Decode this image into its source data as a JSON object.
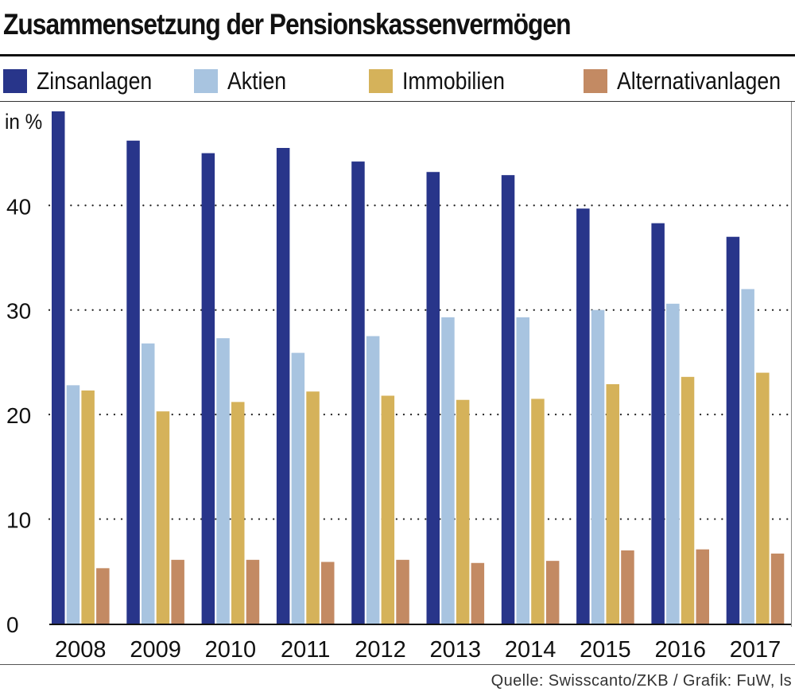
{
  "chart_data": {
    "type": "bar",
    "title": "Zusammensetzung der Pensionskassenvermögen",
    "ylabel": "in %",
    "xlabel": "",
    "ylim": [
      0,
      49
    ],
    "yticks": [
      0,
      10,
      20,
      30,
      40
    ],
    "grid": true,
    "legend_position": "top",
    "categories": [
      "2008",
      "2009",
      "2010",
      "2011",
      "2012",
      "2013",
      "2014",
      "2015",
      "2016",
      "2017"
    ],
    "series": [
      {
        "name": "Zinsanlagen",
        "color": "#28358a",
        "values": [
          49.0,
          46.2,
          45.0,
          45.5,
          44.2,
          43.2,
          42.9,
          39.7,
          38.3,
          37.0
        ]
      },
      {
        "name": "Aktien",
        "color": "#a8c4e0",
        "values": [
          22.8,
          26.8,
          27.3,
          25.9,
          27.5,
          29.3,
          29.3,
          30.0,
          30.6,
          32.0
        ]
      },
      {
        "name": "Immobilien",
        "color": "#d5b25a",
        "values": [
          22.3,
          20.3,
          21.2,
          22.2,
          21.8,
          21.4,
          21.5,
          22.9,
          23.6,
          24.0
        ]
      },
      {
        "name": "Alternativanlagen",
        "color": "#c38a63",
        "values": [
          5.3,
          6.1,
          6.1,
          5.9,
          6.1,
          5.8,
          6.0,
          7.0,
          7.1,
          6.7
        ]
      }
    ]
  },
  "source": "Quelle: Swisscanto/ZKB / Grafik: FuW, ls"
}
